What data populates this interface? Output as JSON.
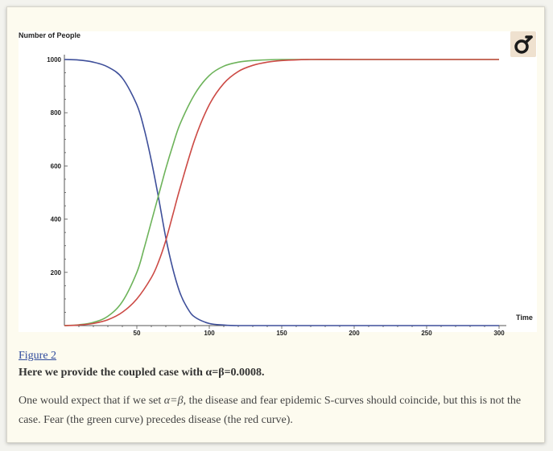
{
  "chart_data": {
    "type": "line",
    "ylabel": "Number of People",
    "xlabel": "Time",
    "xlim": [
      0,
      305
    ],
    "ylim": [
      0,
      1000
    ],
    "x_ticks": [
      50,
      100,
      150,
      200,
      250,
      300
    ],
    "y_ticks": [
      200,
      400,
      600,
      800,
      1000
    ],
    "series": [
      {
        "color": "#3e4f9a",
        "x": [
          0,
          10,
          20,
          30,
          40,
          50,
          55,
          60,
          65,
          70,
          75,
          80,
          85,
          90,
          100,
          110,
          120,
          150,
          200,
          300
        ],
        "y": [
          1000,
          998,
          990,
          972,
          930,
          830,
          740,
          620,
          480,
          330,
          210,
          120,
          65,
          32,
          8,
          2,
          0,
          0,
          0,
          0
        ]
      },
      {
        "color": "#6db35a",
        "x": [
          0,
          10,
          20,
          30,
          40,
          50,
          55,
          60,
          65,
          70,
          75,
          80,
          90,
          100,
          110,
          120,
          130,
          150,
          200,
          300
        ],
        "y": [
          0,
          3,
          12,
          35,
          90,
          200,
          290,
          390,
          490,
          590,
          680,
          760,
          870,
          940,
          975,
          990,
          996,
          1000,
          1000,
          1000
        ]
      },
      {
        "color": "#cc4a45",
        "x": [
          0,
          10,
          20,
          30,
          40,
          50,
          60,
          65,
          70,
          75,
          80,
          90,
          100,
          110,
          120,
          130,
          140,
          150,
          170,
          200,
          300
        ],
        "y": [
          0,
          2,
          8,
          22,
          50,
          100,
          180,
          240,
          320,
          420,
          520,
          700,
          830,
          910,
          955,
          978,
          990,
          996,
          1000,
          1000,
          1000
        ]
      }
    ]
  },
  "caption": {
    "figure_link": "Figure 2",
    "title": "Here we provide the coupled case with α=β=0.0008.",
    "body_pre": "One would expect that if we set ",
    "body_var": "α=β",
    "body_post": ", the disease and fear epidemic S-curves should coincide, but this is not the case. Fear (the green curve) precedes disease (the red curve)."
  },
  "logo": {
    "icon": "male-symbol-icon",
    "color": "#1a1a1a"
  }
}
